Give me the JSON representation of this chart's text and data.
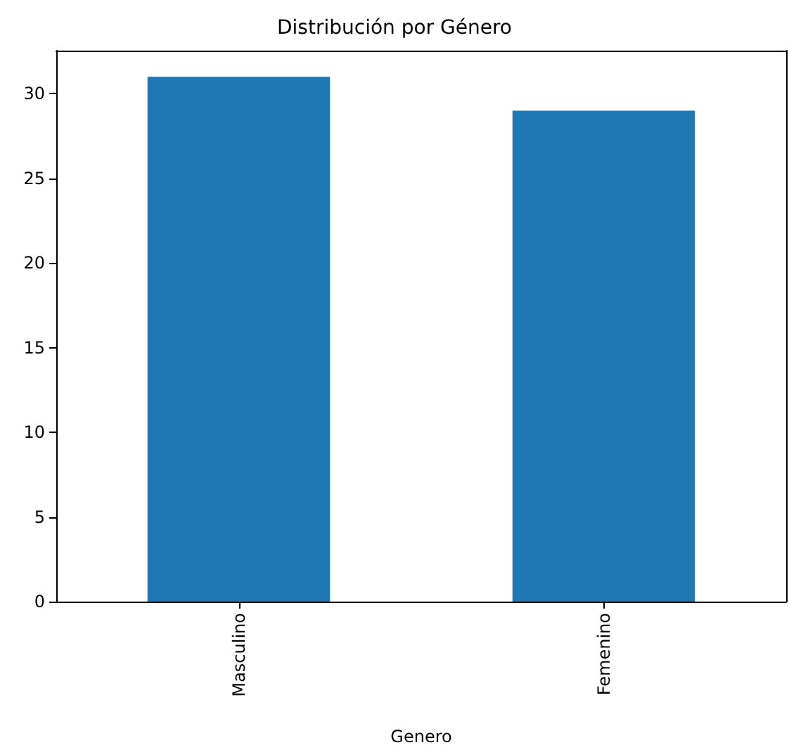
{
  "chart_data": {
    "type": "bar",
    "title": "Distribución por Género",
    "xlabel": "Genero",
    "categories": [
      "Masculino",
      "Femenino"
    ],
    "values": [
      31,
      29
    ],
    "color": "#1f77b4",
    "ylim": [
      0,
      32.55
    ],
    "yticks": [
      0,
      5,
      10,
      15,
      20,
      25,
      30
    ],
    "grid": false
  }
}
